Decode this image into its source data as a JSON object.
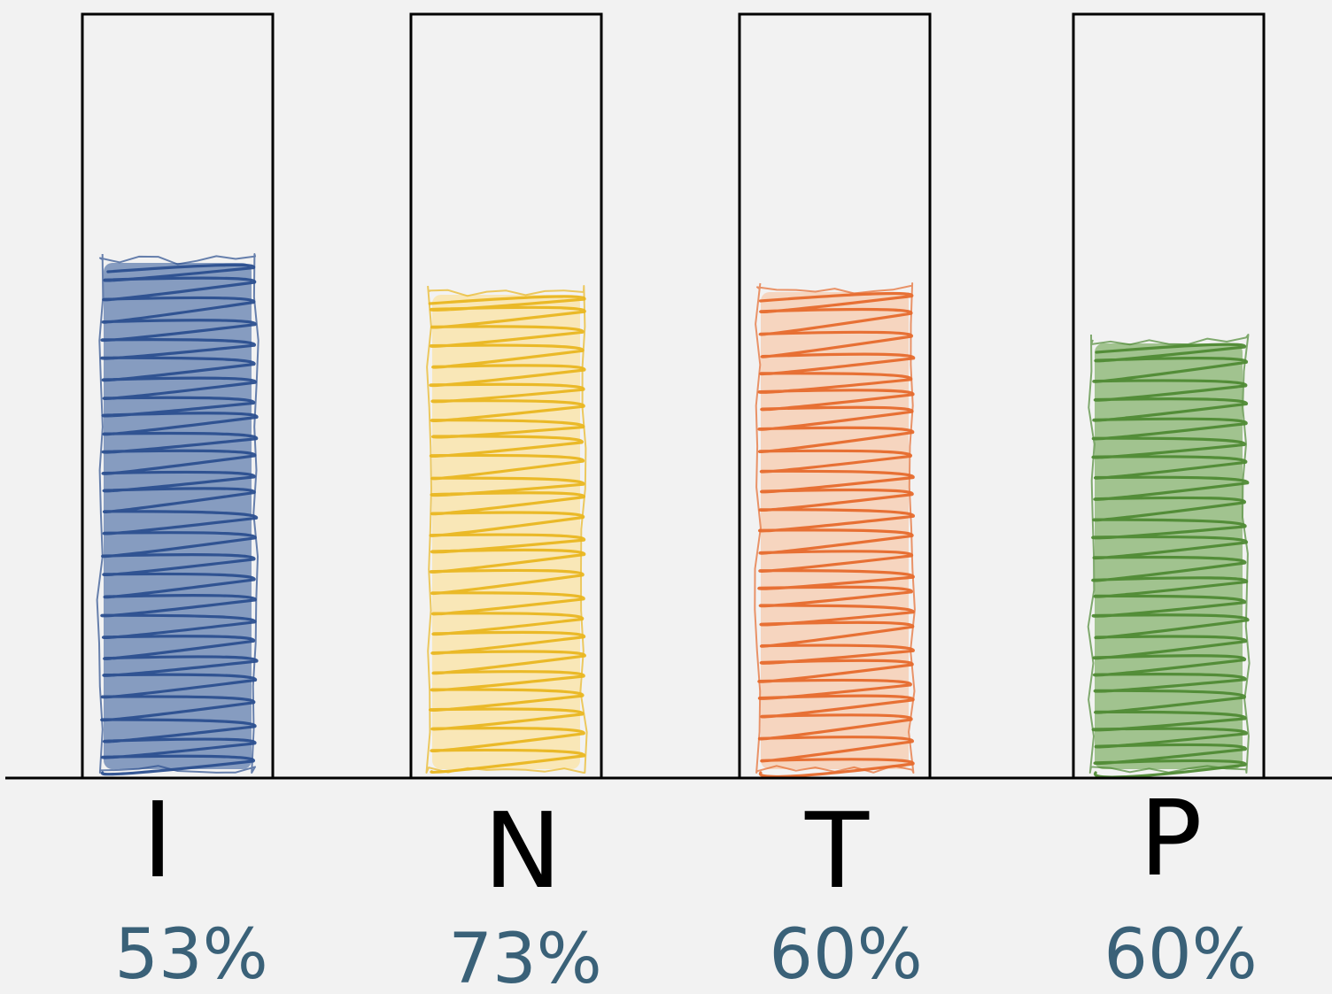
{
  "chart_data": {
    "type": "bar",
    "categories": [
      "I",
      "N",
      "T",
      "P"
    ],
    "value_labels": [
      "53%",
      "73%",
      "60%",
      "60%"
    ],
    "values": [
      53,
      73,
      60,
      60
    ],
    "series_colors": {
      "I": {
        "fill": "#2e5597",
        "stroke": "#2b4f8f"
      },
      "N": {
        "fill": "#ffdf86",
        "stroke": "#e9b620"
      },
      "T": {
        "fill": "#f9bd96",
        "stroke": "#e66a2c"
      },
      "P": {
        "fill": "#5f9c3e",
        "stroke": "#4f8a34"
      }
    },
    "fill_style": "hand-drawn scribble",
    "grid": false,
    "legend": "none"
  }
}
